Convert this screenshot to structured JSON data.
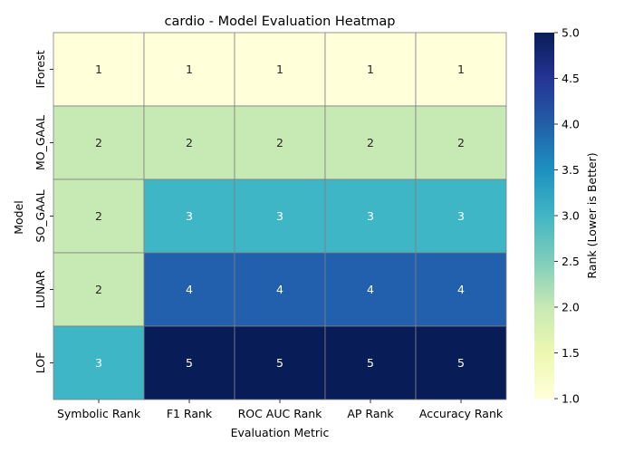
{
  "chart_data": {
    "type": "heatmap",
    "title": "cardio - Model Evaluation Heatmap",
    "xlabel": "Evaluation Metric",
    "ylabel": "Model",
    "x_categories": [
      "Symbolic Rank",
      "F1 Rank",
      "ROC AUC Rank",
      "AP Rank",
      "Accuracy Rank"
    ],
    "y_categories": [
      "IForest",
      "MO_GAAL",
      "SO_GAAL",
      "LUNAR",
      "LOF"
    ],
    "values": [
      [
        1,
        1,
        1,
        1,
        1
      ],
      [
        2,
        2,
        2,
        2,
        2
      ],
      [
        2,
        3,
        3,
        3,
        3
      ],
      [
        2,
        4,
        4,
        4,
        4
      ],
      [
        3,
        5,
        5,
        5,
        5
      ]
    ],
    "colorbar": {
      "label": "Rank (Lower is Better)",
      "range": [
        1.0,
        5.0
      ],
      "ticks": [
        "1.0",
        "1.5",
        "2.0",
        "2.5",
        "3.0",
        "3.5",
        "4.0",
        "4.5",
        "5.0"
      ],
      "colormap": "YlGnBu"
    },
    "colors": {
      "1": "#ffffd9",
      "2": "#c7e9b4",
      "3": "#3fb6c5",
      "4": "#225fac",
      "5": "#081d58",
      "cell_border": "#808080",
      "dark_text": "#262626",
      "light_text": "#ffffff"
    }
  }
}
